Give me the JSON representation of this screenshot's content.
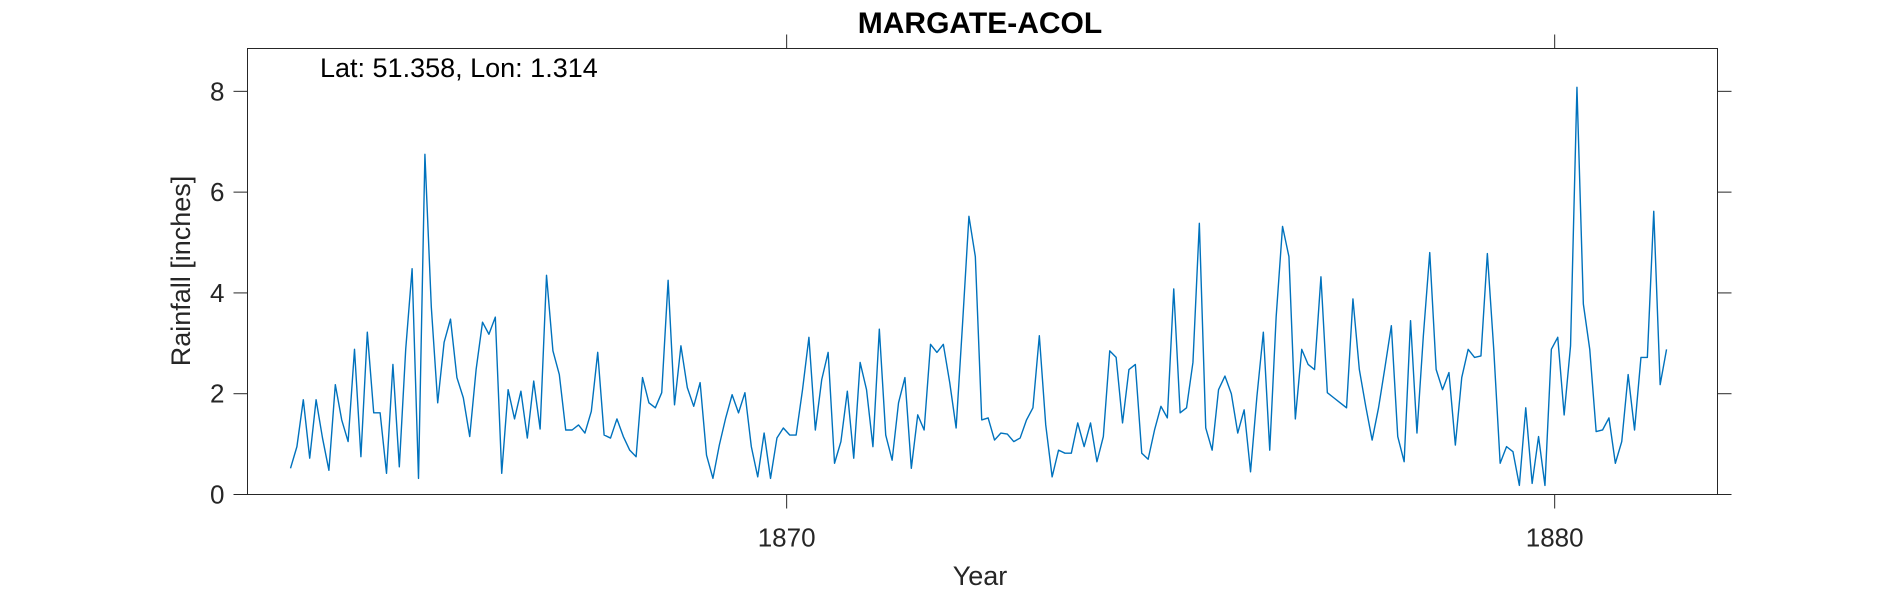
{
  "chart_data": {
    "type": "line",
    "title": "MARGATE-ACOL",
    "xlabel": "Year",
    "ylabel": "Rainfall [inches]",
    "annotation": "Lat: 51.358, Lon: 1.314",
    "xlim": [
      1862.98,
      1882.12
    ],
    "ylim": [
      0,
      8.85
    ],
    "xticks": [
      1870,
      1880
    ],
    "xtick_labels": [
      "1870",
      "1880"
    ],
    "yticks": [
      0,
      2,
      4,
      6,
      8
    ],
    "ytick_labels": [
      "0",
      "2",
      "4",
      "6",
      "8"
    ],
    "grid": false,
    "series": [
      {
        "color": "#0072BD",
        "x_start": 1863.54,
        "x_step": 0.0833333,
        "values": [
          0.52,
          0.95,
          1.88,
          0.72,
          1.88,
          1.12,
          0.48,
          2.18,
          1.48,
          1.05,
          2.88,
          0.75,
          3.22,
          1.62,
          1.62,
          0.42,
          2.58,
          0.55,
          2.88,
          4.48,
          0.32,
          6.75,
          3.72,
          1.82,
          3.02,
          3.48,
          2.32,
          1.92,
          1.15,
          2.48,
          3.42,
          3.18,
          3.52,
          0.42,
          2.08,
          1.5,
          2.05,
          1.12,
          2.25,
          1.3,
          4.35,
          2.85,
          2.38,
          1.28,
          1.28,
          1.38,
          1.22,
          1.65,
          2.82,
          1.18,
          1.12,
          1.5,
          1.15,
          0.88,
          0.75,
          2.32,
          1.82,
          1.72,
          2.02,
          4.25,
          1.78,
          2.95,
          2.12,
          1.75,
          2.22,
          0.78,
          0.32,
          0.98,
          1.52,
          1.98,
          1.62,
          2.02,
          0.95,
          0.35,
          1.22,
          0.32,
          1.12,
          1.32,
          1.18,
          1.18,
          2.08,
          3.12,
          1.28,
          2.28,
          2.82,
          0.62,
          1.05,
          2.05,
          0.72,
          2.62,
          2.08,
          0.95,
          3.28,
          1.18,
          0.68,
          1.82,
          2.32,
          0.52,
          1.58,
          1.28,
          2.98,
          2.82,
          2.98,
          2.22,
          1.32,
          3.38,
          5.52,
          4.72,
          1.48,
          1.52,
          1.08,
          1.22,
          1.2,
          1.05,
          1.12,
          1.48,
          1.72,
          3.15,
          1.38,
          0.35,
          0.88,
          0.82,
          0.82,
          1.42,
          0.95,
          1.42,
          0.65,
          1.15,
          2.85,
          2.72,
          1.42,
          2.48,
          2.58,
          0.82,
          0.7,
          1.28,
          1.75,
          1.52,
          4.08,
          1.62,
          1.72,
          2.62,
          5.38,
          1.32,
          0.88,
          2.08,
          2.35,
          2.0,
          1.22,
          1.68,
          0.45,
          1.95,
          3.22,
          0.88,
          3.52,
          5.32,
          4.72,
          1.5,
          2.88,
          2.58,
          2.48,
          4.32,
          2.02,
          1.92,
          1.82,
          1.72,
          3.88,
          2.48,
          1.75,
          1.08,
          1.72,
          2.52,
          3.35,
          1.15,
          0.65,
          3.45,
          1.22,
          3.15,
          4.8,
          2.48,
          2.08,
          2.42,
          0.98,
          2.32,
          2.88,
          2.72,
          2.75,
          4.78,
          2.88,
          0.62,
          0.95,
          0.85,
          0.18,
          1.72,
          0.22,
          1.15,
          0.18,
          2.88,
          3.12,
          1.58,
          2.95,
          8.08,
          3.78,
          2.88,
          1.25,
          1.28,
          1.52,
          0.62,
          1.05,
          2.38,
          1.28,
          2.72,
          2.72,
          5.62,
          2.18,
          2.88
        ]
      }
    ]
  }
}
